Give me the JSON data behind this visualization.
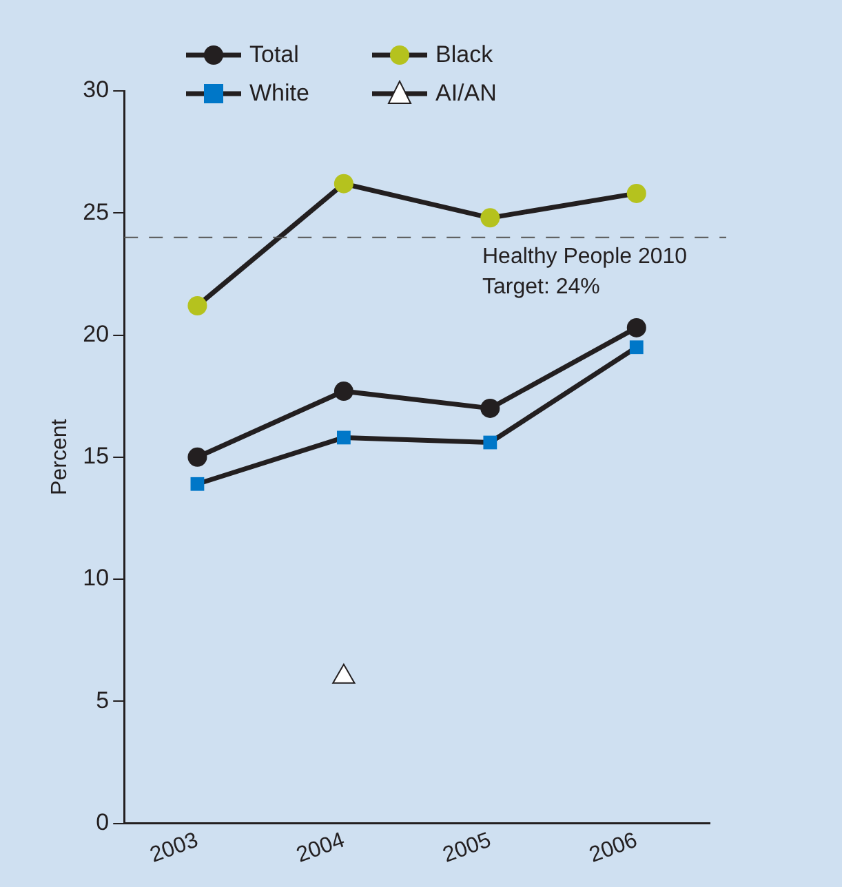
{
  "chart_data": {
    "type": "line",
    "categories": [
      "2003",
      "2004",
      "2005",
      "2006"
    ],
    "ylabel": "Percent",
    "ylim": [
      0,
      30
    ],
    "yticks": [
      0,
      5,
      10,
      15,
      20,
      25,
      30
    ],
    "grid": false,
    "legend": "top left",
    "series": [
      {
        "name": "Total",
        "color": "#231f20",
        "marker": "circle",
        "values": [
          15.0,
          17.7,
          17.0,
          20.3
        ]
      },
      {
        "name": "White",
        "color": "#0077c8",
        "marker": "square",
        "values": [
          13.9,
          15.8,
          15.6,
          19.5
        ]
      },
      {
        "name": "Black",
        "color": "#b5c21e",
        "marker": "circle",
        "values": [
          21.2,
          26.2,
          24.8,
          25.8
        ]
      },
      {
        "name": "AI/AN",
        "color": "#ffffff",
        "marker": "triangle",
        "values": [
          null,
          6.0,
          null,
          null
        ]
      }
    ],
    "ref_lines": [
      {
        "axis": "y",
        "value": 24,
        "label": "Healthy People 2010\nTarget: 24%",
        "line_style": "dashed",
        "color": "#555555"
      }
    ]
  }
}
